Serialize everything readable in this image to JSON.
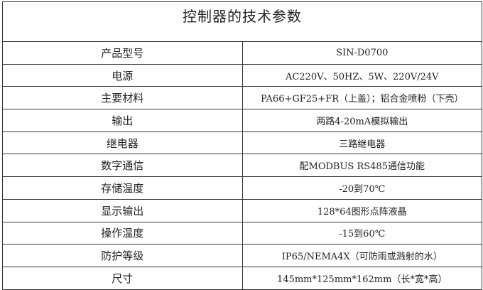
{
  "title": "控制器的技术参数",
  "rows": [
    {
      "label": "产品型号",
      "value": "SIN-D0700"
    },
    {
      "label": "电源",
      "value": "AC220V、50HZ、5W、220V/24V"
    },
    {
      "label": "主要材料",
      "value": "PA66+GF25+FR（上盖）；铝合金喷粉（下壳）"
    },
    {
      "label": "输出",
      "value": "两路4-20mA模拟输出"
    },
    {
      "label": "继电器",
      "value": "三路继电器"
    },
    {
      "label": "数字通信",
      "value": "配MODBUS RS485通信功能"
    },
    {
      "label": "存储温度",
      "value": "-20到70℃"
    },
    {
      "label": "显示输出",
      "value": "128*64图形点阵液晶"
    },
    {
      "label": "操作温度",
      "value": "-15到60℃"
    },
    {
      "label": "防护等级",
      "value": "IP65/NEMA4X（可防雨或溅射的水）"
    },
    {
      "label": "尺寸",
      "value": "145mm*125mm*162mm（长*宽*高）"
    }
  ]
}
